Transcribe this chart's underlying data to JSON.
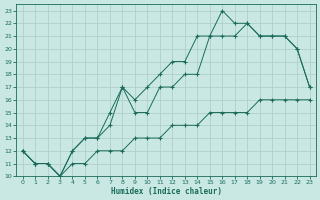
{
  "xlabel": "Humidex (Indice chaleur)",
  "bg_color": "#c9e8e4",
  "grid_color": "#b0d0cc",
  "line_color": "#1a6b5a",
  "xlim": [
    -0.5,
    23.5
  ],
  "ylim": [
    10,
    23.5
  ],
  "xticks": [
    0,
    1,
    2,
    3,
    4,
    5,
    6,
    7,
    8,
    9,
    10,
    11,
    12,
    13,
    14,
    15,
    16,
    17,
    18,
    19,
    20,
    21,
    22,
    23
  ],
  "yticks": [
    10,
    11,
    12,
    13,
    14,
    15,
    16,
    17,
    18,
    19,
    20,
    21,
    22,
    23
  ],
  "line1_x": [
    0,
    1,
    2,
    3,
    4,
    5,
    6,
    7,
    8,
    9,
    10,
    11,
    12,
    13,
    14,
    15,
    16,
    17,
    18,
    19,
    20,
    21,
    22,
    23
  ],
  "line1_y": [
    12,
    11,
    11,
    10,
    11,
    11,
    12,
    12,
    12,
    13,
    13,
    13,
    14,
    14,
    14,
    15,
    15,
    15,
    15,
    16,
    16,
    16,
    16,
    16
  ],
  "line2_x": [
    0,
    1,
    2,
    3,
    4,
    5,
    6,
    7,
    8,
    9,
    10,
    11,
    12,
    13,
    14,
    15,
    16,
    17,
    18,
    19,
    20,
    21,
    22,
    23
  ],
  "line2_y": [
    12,
    11,
    11,
    10,
    12,
    13,
    13,
    14,
    17,
    15,
    15,
    17,
    17,
    18,
    18,
    21,
    21,
    21,
    22,
    21,
    21,
    21,
    20,
    17
  ],
  "line3_x": [
    0,
    1,
    2,
    3,
    4,
    5,
    6,
    7,
    8,
    9,
    10,
    11,
    12,
    13,
    14,
    15,
    16,
    17,
    18,
    19,
    20,
    21,
    22,
    23
  ],
  "line3_y": [
    12,
    11,
    11,
    10,
    12,
    13,
    13,
    15,
    17,
    16,
    17,
    18,
    19,
    19,
    21,
    21,
    23,
    22,
    22,
    21,
    21,
    21,
    20,
    17
  ]
}
